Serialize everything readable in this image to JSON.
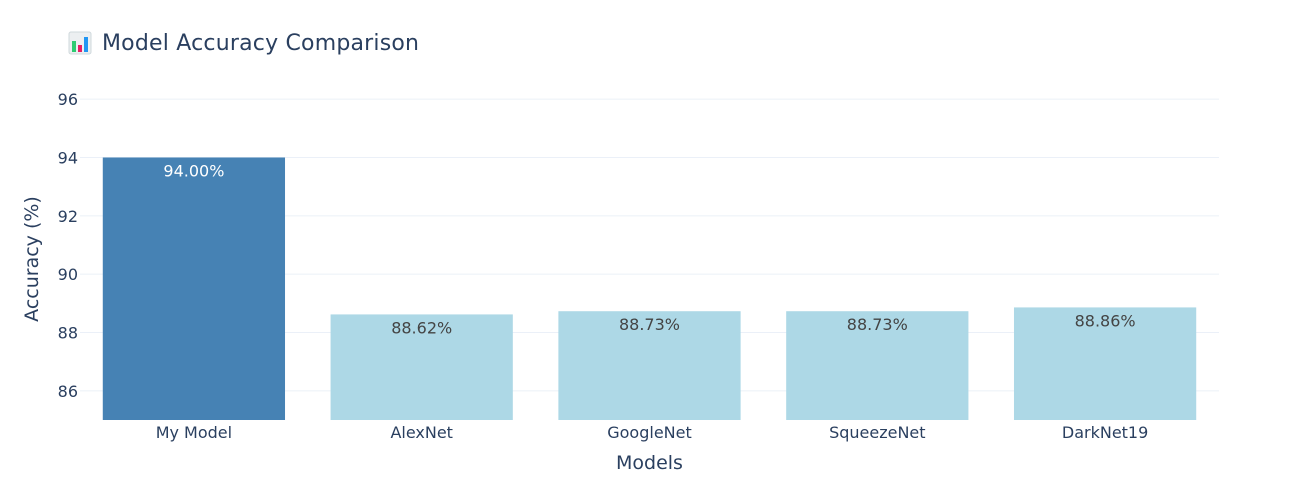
{
  "chart_data": {
    "type": "bar",
    "title": "Model Accuracy Comparison",
    "title_icon": "bar-chart-icon",
    "xlabel": "Models",
    "ylabel": "Accuracy (%)",
    "categories": [
      "My Model",
      "AlexNet",
      "GoogleNet",
      "SqueezeNet",
      "DarkNet19"
    ],
    "values": [
      94.0,
      88.62,
      88.73,
      88.73,
      88.86
    ],
    "data_labels": [
      "94.00%",
      "88.62%",
      "88.73%",
      "88.73%",
      "88.86%"
    ],
    "ylim": [
      85,
      97
    ],
    "yticks": [
      86,
      88,
      90,
      92,
      94,
      96
    ],
    "grid": true,
    "legend": "none",
    "colors": {
      "highlight": "#4682b4",
      "default": "#add8e6",
      "label_on_highlight": "#ffffff",
      "label_default": "#444444",
      "axis_text": "#2a3f5f",
      "grid": "#ebf0f8"
    }
  }
}
